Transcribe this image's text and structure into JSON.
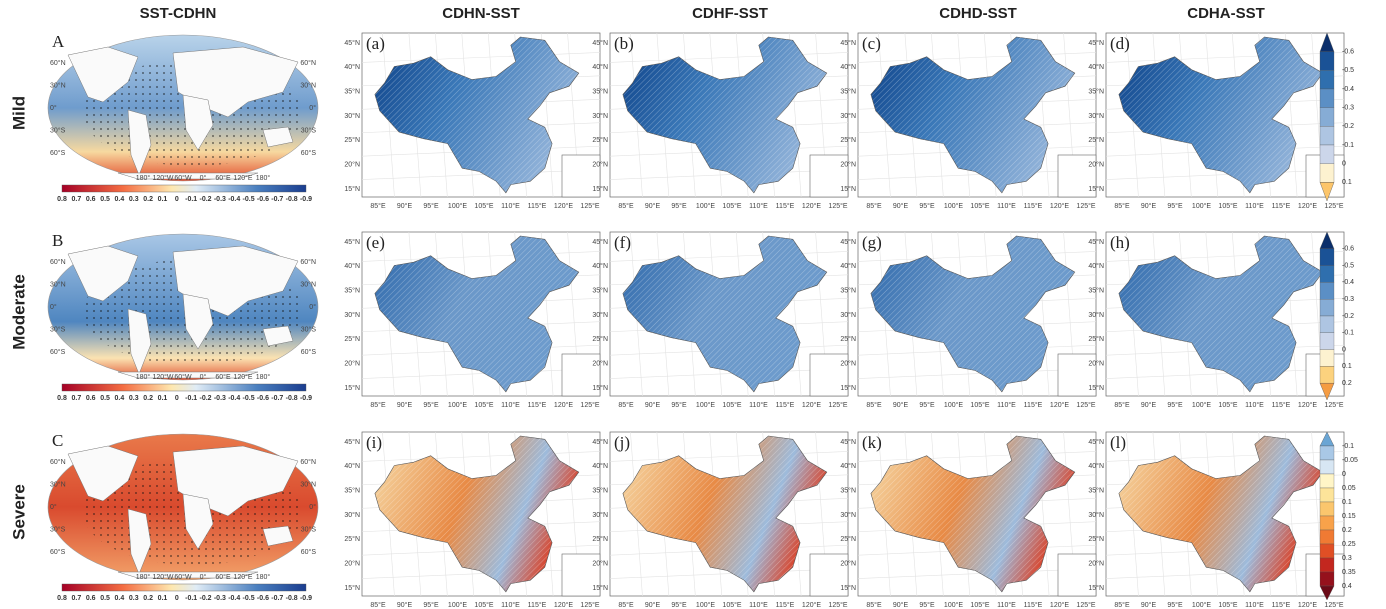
{
  "column_headers": [
    "SST-CDHN",
    "CDHN-SST",
    "CDHF-SST",
    "CDHD-SST",
    "CDHA-SST"
  ],
  "rows": [
    {
      "label": "Mild",
      "letter": "A",
      "panels": [
        "(a)",
        "(b)",
        "(c)",
        "(d)"
      ],
      "colorbar": [
        "-0.6",
        "-0.5",
        "-0.4",
        "-0.3",
        "-0.2",
        "-0.1",
        "0",
        "0.1"
      ]
    },
    {
      "label": "Moderate",
      "letter": "B",
      "panels": [
        "(e)",
        "(f)",
        "(g)",
        "(h)"
      ],
      "colorbar": [
        "-0.6",
        "-0.5",
        "-0.4",
        "-0.3",
        "-0.2",
        "-0.1",
        "0",
        "0.1",
        "0.2"
      ]
    },
    {
      "label": "Severe",
      "letter": "C",
      "panels": [
        "(i)",
        "(j)",
        "(k)",
        "(l)"
      ],
      "colorbar": [
        "-0.1",
        "-0.05",
        "0",
        "0.05",
        "0.1",
        "0.15",
        "0.2",
        "0.25",
        "0.3",
        "0.35",
        "0.4"
      ]
    }
  ],
  "global_map": {
    "lat_labels": [
      "60°N",
      "30°N",
      "0°",
      "30°S",
      "60°S"
    ],
    "lon_labels": [
      "180°",
      "120°W",
      "60°W",
      "0°",
      "60°E",
      "120°E",
      "180°"
    ],
    "colorbar_labels": [
      "0.8",
      "0.7",
      "0.6",
      "0.5",
      "0.4",
      "0.3",
      "0.2",
      "0.1",
      "0",
      "-0.1",
      "-0.2",
      "-0.3",
      "-0.4",
      "-0.5",
      "-0.6",
      "-0.7",
      "-0.8",
      "-0.9"
    ]
  },
  "china_map": {
    "lat_labels": [
      "45°N",
      "40°N",
      "35°N",
      "30°N",
      "25°N",
      "20°N",
      "15°N"
    ],
    "lon_labels": [
      "85°E",
      "90°E",
      "95°E",
      "100°E",
      "105°E",
      "110°E",
      "115°E",
      "120°E",
      "125°E"
    ]
  }
}
